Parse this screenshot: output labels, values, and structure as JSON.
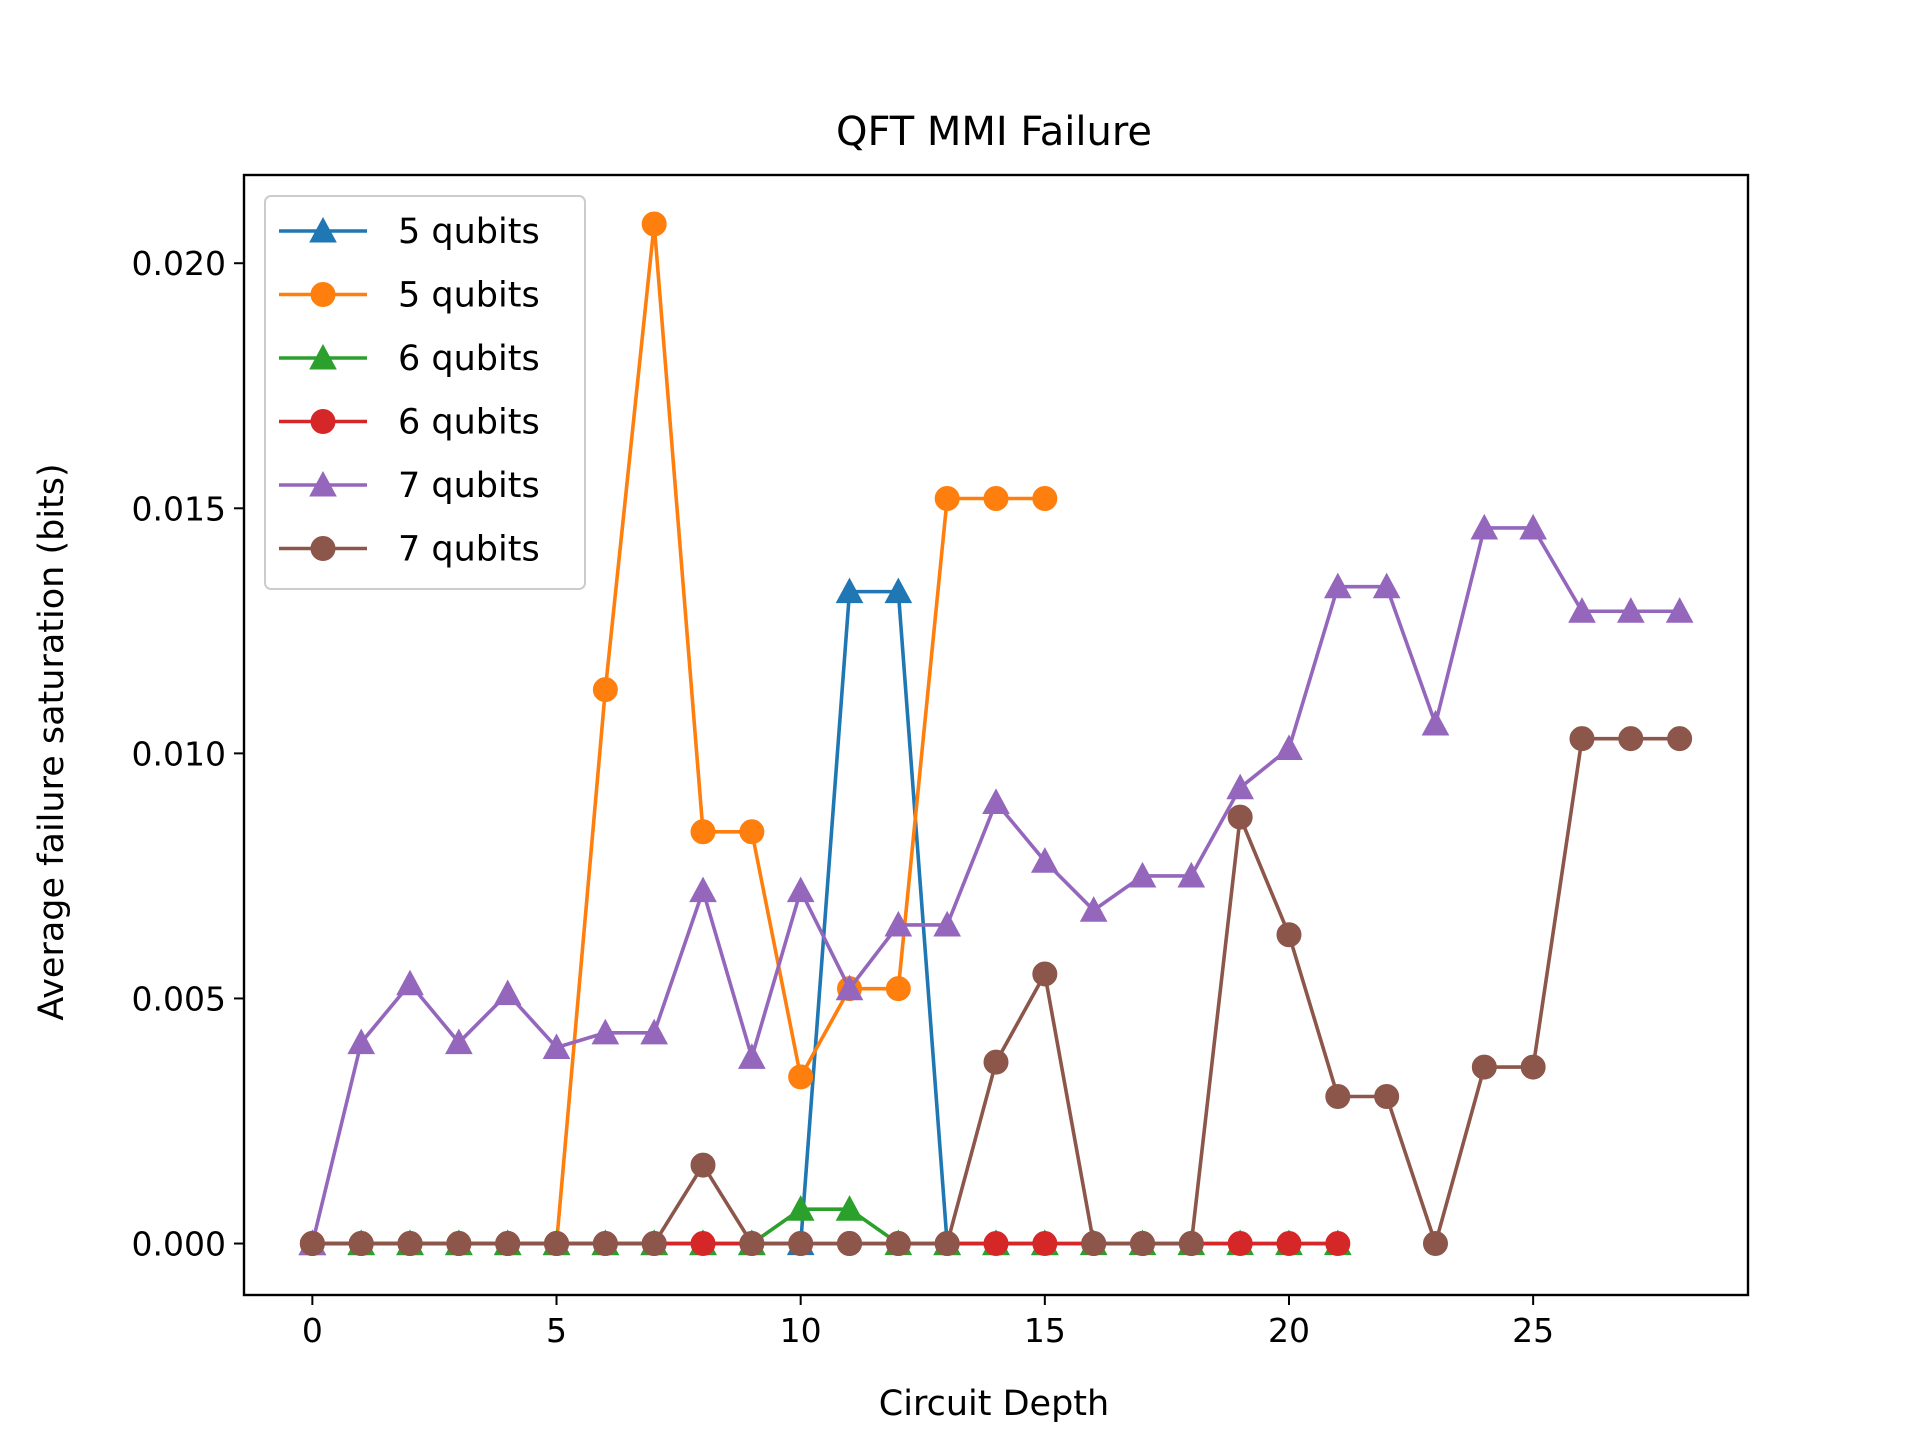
{
  "chart_data": {
    "type": "line",
    "title": "QFT MMI Failure",
    "xlabel": "Circuit Depth",
    "ylabel": "Average failure saturation (bits)",
    "xlim": [
      -1.4,
      29.4
    ],
    "ylim": [
      -0.00105,
      0.0218
    ],
    "xticks": [
      0,
      5,
      10,
      15,
      20,
      25
    ],
    "xtick_labels": [
      "0",
      "5",
      "10",
      "15",
      "20",
      "25"
    ],
    "yticks": [
      0.0,
      0.005,
      0.01,
      0.015,
      0.02
    ],
    "ytick_labels": [
      "0.000",
      "0.005",
      "0.010",
      "0.015",
      "0.020"
    ],
    "legend_position": "upper-left",
    "series": [
      {
        "name": "5 qubits",
        "color": "#1f77b4",
        "marker": "triangle",
        "x": [
          0,
          1,
          2,
          3,
          4,
          5,
          6,
          7,
          8,
          9,
          10,
          11,
          12,
          13,
          14,
          15
        ],
        "y": [
          0,
          0,
          0,
          0,
          0,
          0,
          0,
          0,
          0,
          0,
          0,
          0.0133,
          0.0133,
          0,
          0,
          0
        ]
      },
      {
        "name": "5 qubits",
        "color": "#ff7f0e",
        "marker": "circle",
        "x": [
          0,
          1,
          2,
          3,
          4,
          5,
          6,
          7,
          8,
          9,
          10,
          11,
          12,
          13,
          14,
          15
        ],
        "y": [
          0,
          0,
          0,
          0,
          0,
          0,
          0.0113,
          0.0208,
          0.0084,
          0.0084,
          0.0034,
          0.0052,
          0.0052,
          0.0152,
          0.0152,
          0.0152
        ]
      },
      {
        "name": "6 qubits",
        "color": "#2ca02c",
        "marker": "triangle",
        "x": [
          0,
          1,
          2,
          3,
          4,
          5,
          6,
          7,
          8,
          9,
          10,
          11,
          12,
          13,
          14,
          15,
          16,
          17,
          18,
          19,
          20,
          21
        ],
        "y": [
          0,
          0,
          0,
          0,
          0,
          0,
          0,
          0,
          0,
          0,
          0.0007,
          0.0007,
          0,
          0,
          0,
          0,
          0,
          0,
          0,
          0,
          0,
          0
        ]
      },
      {
        "name": "6 qubits",
        "color": "#d62728",
        "marker": "circle",
        "x": [
          0,
          1,
          2,
          3,
          4,
          5,
          6,
          7,
          8,
          9,
          10,
          11,
          12,
          13,
          14,
          15,
          16,
          17,
          18,
          19,
          20,
          21
        ],
        "y": [
          0,
          0,
          0,
          0,
          0,
          0,
          0,
          0,
          0,
          0,
          0,
          0,
          0,
          0,
          0,
          0,
          0,
          0,
          0,
          0,
          0,
          0
        ]
      },
      {
        "name": "7 qubits",
        "color": "#9467bd",
        "marker": "triangle",
        "x": [
          0,
          1,
          2,
          3,
          4,
          5,
          6,
          7,
          8,
          9,
          10,
          11,
          12,
          13,
          14,
          15,
          16,
          17,
          18,
          19,
          20,
          21,
          22,
          23,
          24,
          25,
          26,
          27,
          28
        ],
        "y": [
          0,
          0.0041,
          0.0053,
          0.0041,
          0.0051,
          0.004,
          0.0043,
          0.0043,
          0.0072,
          0.0038,
          0.0072,
          0.0052,
          0.0065,
          0.0065,
          0.009,
          0.0078,
          0.0068,
          0.0075,
          0.0075,
          0.0093,
          0.0101,
          0.0134,
          0.0134,
          0.0106,
          0.0146,
          0.0146,
          0.0129,
          0.0129,
          0.0129
        ]
      },
      {
        "name": "7 qubits",
        "color": "#8c564b",
        "marker": "circle",
        "x": [
          0,
          1,
          2,
          3,
          4,
          5,
          6,
          7,
          8,
          9,
          10,
          11,
          12,
          13,
          14,
          15,
          16,
          17,
          18,
          19,
          20,
          21,
          22,
          23,
          24,
          25,
          26,
          27,
          28
        ],
        "y": [
          0,
          0,
          0,
          0,
          0,
          0,
          0,
          0,
          0.0016,
          0,
          0,
          0,
          0,
          0,
          0.0037,
          0.0055,
          0,
          0,
          0,
          0.0087,
          0.0063,
          0.003,
          0.003,
          0,
          0.0036,
          0.0036,
          0.0103,
          0.0103,
          0.0103
        ]
      }
    ]
  }
}
